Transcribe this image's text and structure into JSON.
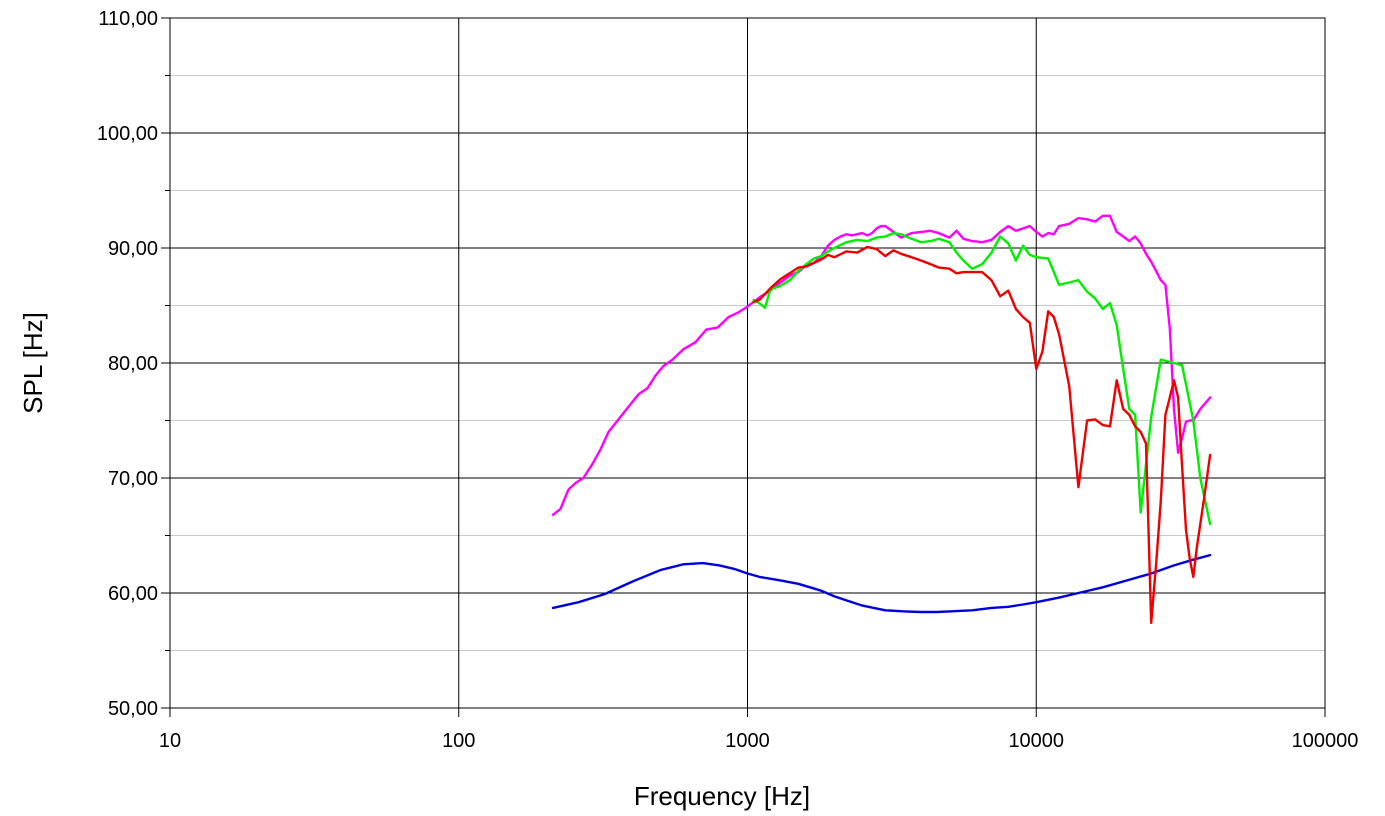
{
  "chart_data": {
    "type": "line",
    "title": "",
    "xlabel": "Frequency [Hz]",
    "ylabel": "SPL [Hz]",
    "xscale": "log",
    "xlim": [
      10,
      100000
    ],
    "ylim": [
      50,
      110
    ],
    "grid": true,
    "legend": "none",
    "xticks": [
      10,
      100,
      1000,
      10000,
      100000
    ],
    "xtick_labels": [
      "10",
      "100",
      "1000",
      "10000",
      "100000"
    ],
    "yticks": [
      50,
      60,
      70,
      80,
      90,
      100,
      110
    ],
    "ytick_labels": [
      "50,00",
      "60,00",
      "70,00",
      "80,00",
      "90,00",
      "100,00",
      "110,00"
    ],
    "series": [
      {
        "color": "#0000dd",
        "x": [
          212,
          260,
          320,
          400,
          500,
          600,
          700,
          800,
          900,
          1000,
          1100,
          1300,
          1500,
          1800,
          2000,
          2500,
          3000,
          3500,
          4000,
          4500,
          5000,
          5500,
          6000,
          7000,
          8000,
          9000,
          10000,
          12000,
          14000,
          17000,
          20000,
          25000,
          30000,
          35000,
          40000
        ],
        "y": [
          58.7,
          59.2,
          59.9,
          61.0,
          62.0,
          62.5,
          62.6,
          62.4,
          62.1,
          61.7,
          61.4,
          61.1,
          60.8,
          60.2,
          59.7,
          58.9,
          58.5,
          58.4,
          58.35,
          58.35,
          58.4,
          58.45,
          58.5,
          58.7,
          58.8,
          59.0,
          59.2,
          59.6,
          60.0,
          60.5,
          61.0,
          61.7,
          62.4,
          62.9,
          63.3
        ]
      },
      {
        "color": "#ff00ff",
        "x": [
          212,
          225,
          240,
          255,
          270,
          290,
          310,
          330,
          360,
          390,
          420,
          450,
          480,
          510,
          550,
          600,
          660,
          720,
          790,
          860,
          930,
          1000,
          1100,
          1200,
          1300,
          1400,
          1500,
          1600,
          1700,
          1800,
          1900,
          2000,
          2100,
          2200,
          2300,
          2400,
          2500,
          2600,
          2700,
          2800,
          2900,
          3000,
          3200,
          3400,
          3700,
          4000,
          4300,
          4600,
          5000,
          5300,
          5600,
          6000,
          6500,
          7000,
          7500,
          8000,
          8500,
          9000,
          9500,
          10000,
          10500,
          11000,
          11500,
          12000,
          13000,
          14000,
          15000,
          16000,
          17000,
          18000,
          19000,
          20000,
          21000,
          22000,
          23000,
          24000,
          25000,
          26000,
          27000,
          28000,
          29000,
          30000,
          31000,
          32000,
          33000,
          34000,
          35000,
          37000,
          40000
        ],
        "y": [
          66.8,
          67.3,
          69.0,
          69.6,
          70.0,
          71.2,
          72.5,
          74.0,
          75.2,
          76.3,
          77.3,
          77.8,
          78.9,
          79.7,
          80.3,
          81.2,
          81.8,
          82.9,
          83.1,
          84.0,
          84.4,
          84.9,
          85.7,
          86.3,
          87.0,
          87.6,
          87.9,
          88.5,
          88.7,
          89.3,
          90.2,
          90.7,
          91.0,
          91.2,
          91.1,
          91.2,
          91.3,
          91.1,
          91.3,
          91.7,
          91.9,
          91.9,
          91.4,
          90.9,
          91.3,
          91.4,
          91.5,
          91.3,
          90.9,
          91.5,
          90.8,
          90.6,
          90.5,
          90.7,
          91.4,
          91.9,
          91.5,
          91.7,
          91.9,
          91.4,
          91.0,
          91.3,
          91.2,
          91.9,
          92.1,
          92.6,
          92.5,
          92.3,
          92.8,
          92.8,
          91.4,
          91.0,
          90.6,
          91.0,
          90.4,
          89.5,
          88.8,
          88.0,
          87.2,
          86.8,
          83.0,
          76.0,
          72.2,
          73.5,
          74.9,
          75.0,
          75.0,
          76.0,
          77.0
        ]
      },
      {
        "color": "#00ee00",
        "x": [
          1050,
          1100,
          1150,
          1200,
          1300,
          1400,
          1500,
          1600,
          1700,
          1800,
          1900,
          2000,
          2200,
          2400,
          2600,
          2800,
          3000,
          3200,
          3400,
          3700,
          4000,
          4300,
          4600,
          5000,
          5300,
          5600,
          6000,
          6500,
          7000,
          7500,
          8000,
          8500,
          9000,
          9500,
          10000,
          11000,
          12000,
          13000,
          14000,
          15000,
          16000,
          17000,
          18000,
          19000,
          20000,
          21000,
          22000,
          23000,
          25000,
          27000,
          30000,
          32000,
          35000,
          37000,
          40000
        ],
        "y": [
          85.5,
          85.2,
          84.8,
          86.4,
          86.7,
          87.2,
          88.0,
          88.6,
          89.1,
          89.3,
          89.7,
          90.0,
          90.5,
          90.7,
          90.6,
          90.9,
          91.0,
          91.3,
          91.2,
          90.8,
          90.5,
          90.6,
          90.8,
          90.5,
          89.6,
          88.9,
          88.2,
          88.6,
          89.6,
          91.0,
          90.4,
          88.9,
          90.2,
          89.4,
          89.2,
          89.1,
          86.8,
          87.0,
          87.2,
          86.2,
          85.6,
          84.7,
          85.2,
          83.3,
          79.5,
          76.0,
          75.5,
          67.0,
          75.3,
          80.3,
          80.0,
          79.8,
          75.0,
          70.0,
          66.0
        ]
      },
      {
        "color": "#ee0000",
        "x": [
          1050,
          1100,
          1200,
          1300,
          1400,
          1500,
          1600,
          1700,
          1800,
          1900,
          2000,
          2200,
          2400,
          2600,
          2800,
          3000,
          3200,
          3400,
          3700,
          4000,
          4300,
          4600,
          5000,
          5300,
          5600,
          6000,
          6500,
          7000,
          7500,
          8000,
          8500,
          9000,
          9500,
          10000,
          10500,
          11000,
          11500,
          12000,
          13000,
          14000,
          15000,
          16000,
          17000,
          18000,
          19000,
          20000,
          21000,
          22000,
          23000,
          24000,
          25000,
          26000,
          27000,
          28000,
          29000,
          30000,
          31000,
          32000,
          33000,
          34000,
          35000,
          36000,
          37000,
          38000,
          40000
        ],
        "y": [
          85.3,
          85.5,
          86.5,
          87.3,
          87.8,
          88.3,
          88.4,
          88.7,
          89.0,
          89.4,
          89.2,
          89.7,
          89.6,
          90.1,
          89.9,
          89.3,
          89.8,
          89.5,
          89.2,
          88.9,
          88.6,
          88.3,
          88.2,
          87.8,
          87.9,
          87.9,
          87.9,
          87.2,
          85.8,
          86.3,
          84.7,
          84.0,
          83.5,
          79.5,
          81.0,
          84.5,
          84.0,
          82.5,
          78.0,
          69.2,
          75.0,
          75.1,
          74.6,
          74.5,
          78.5,
          76.0,
          75.5,
          74.5,
          74.0,
          73.0,
          57.4,
          62.5,
          68.0,
          75.5,
          77.0,
          78.5,
          77.0,
          71.0,
          65.5,
          63.0,
          61.4,
          64.0,
          66.0,
          68.0,
          72.0
        ]
      }
    ]
  }
}
